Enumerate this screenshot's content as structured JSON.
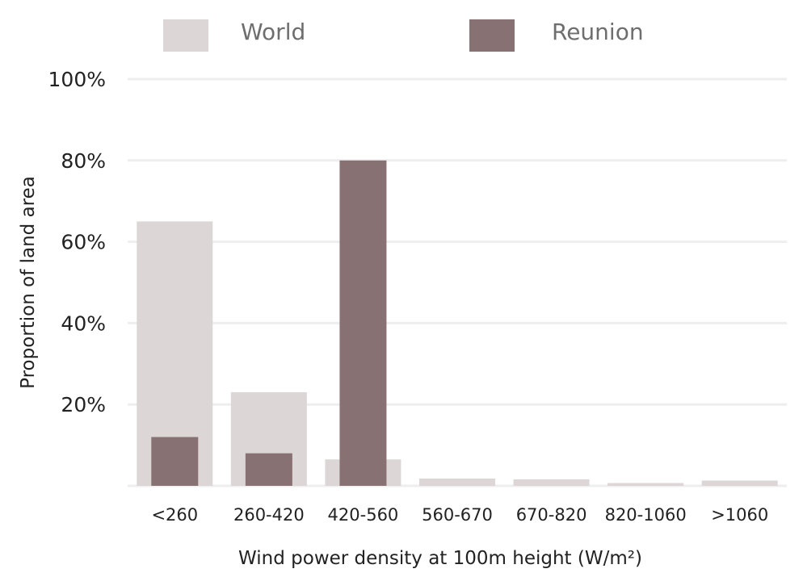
{
  "chart_data": {
    "type": "bar",
    "categories": [
      "<260",
      "260-420",
      "420-560",
      "560-670",
      "670-820",
      "820-1060",
      ">1060"
    ],
    "series": [
      {
        "name": "World",
        "values": [
          65,
          23,
          6.5,
          1.8,
          1.6,
          0.7,
          1.3
        ],
        "color": "#dcd6d6"
      },
      {
        "name": "Reunion",
        "values": [
          12,
          8,
          80,
          0,
          0,
          0,
          0
        ],
        "color": "#877172"
      }
    ],
    "xlabel": "Wind power density at 100m height (W/m²)",
    "ylabel": "Proportion of land area",
    "ylim": [
      0,
      100
    ],
    "yticks": [
      20,
      40,
      60,
      80,
      100
    ],
    "ytick_labels": [
      "20%",
      "40%",
      "60%",
      "80%",
      "100%"
    ],
    "grid": true,
    "legend_position": "top"
  }
}
